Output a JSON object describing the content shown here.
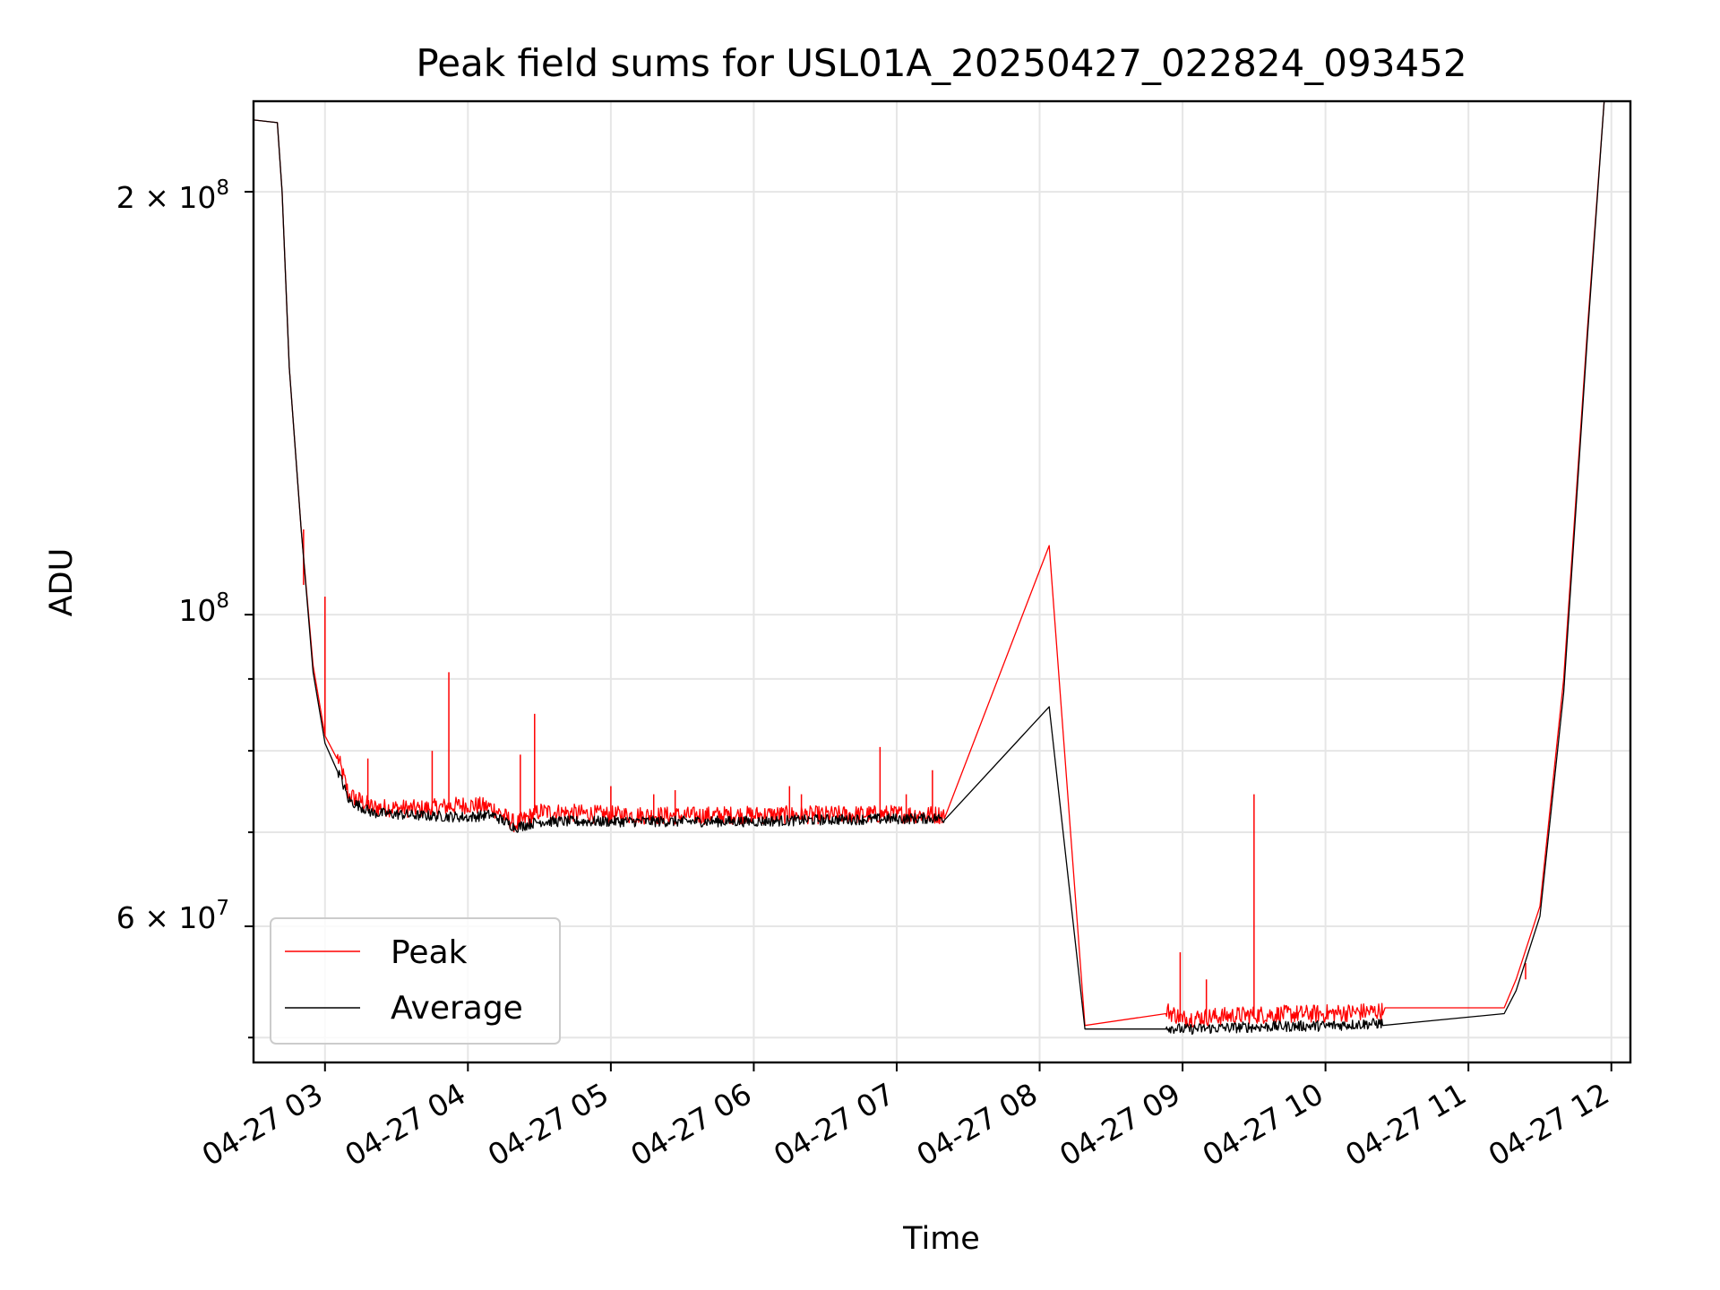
{
  "chart_data": {
    "type": "line",
    "title": "Peak field sums for USL01A_20250427_022824_093452",
    "xlabel": "Time",
    "ylabel": "ADU",
    "x_ticks": [
      "04-27 03",
      "04-27 04",
      "04-27 05",
      "04-27 06",
      "04-27 07",
      "04-27 08",
      "04-27 09",
      "04-27 10",
      "04-27 11",
      "04-27 12"
    ],
    "y_tick_labels": {
      "y2e8": "2 × 10",
      "y2e8_exp": "8",
      "y1e8": "10",
      "y1e8_exp": "8",
      "y6e7": "6 × 10",
      "y6e7_exp": "7"
    },
    "y_scale": "log",
    "xlim": [
      "2025-04-27 02:30",
      "2025-04-27 12:08"
    ],
    "ylim": [
      48000000,
      232000000
    ],
    "grid": true,
    "legend_location": "lower-left",
    "series": [
      {
        "name": "Peak",
        "color": "#ff0000",
        "points": [
          [
            "2025-04-27 02:30",
            225000000
          ],
          [
            "2025-04-27 02:40",
            224000000
          ],
          [
            "2025-04-27 02:42",
            200000000
          ],
          [
            "2025-04-27 02:45",
            150000000
          ],
          [
            "2025-04-27 02:50",
            115000000
          ],
          [
            "2025-04-27 02:55",
            92000000
          ],
          [
            "2025-04-27 03:00",
            82000000
          ],
          [
            "2025-04-27 03:05",
            79000000
          ],
          [
            "2025-04-27 03:10",
            74000000
          ],
          [
            "2025-04-27 03:20",
            72500000
          ],
          [
            "2025-04-27 03:40",
            72300000
          ],
          [
            "2025-04-27 04:00",
            72800000
          ],
          [
            "2025-04-27 04:10",
            72500000
          ],
          [
            "2025-04-27 04:20",
            70500000
          ],
          [
            "2025-04-27 04:30",
            72000000
          ],
          [
            "2025-04-27 05:00",
            71600000
          ],
          [
            "2025-04-27 05:30",
            71500000
          ],
          [
            "2025-04-27 06:00",
            71600000
          ],
          [
            "2025-04-27 06:30",
            71600000
          ],
          [
            "2025-04-27 07:00",
            71700000
          ],
          [
            "2025-04-27 07:20",
            71600000
          ],
          [
            "2025-04-27 08:04",
            112000000
          ],
          [
            "2025-04-27 08:19",
            51000000
          ],
          [
            "2025-04-27 08:53",
            52000000
          ],
          [
            "2025-04-27 09:00",
            51300000
          ],
          [
            "2025-04-27 09:30",
            51600000
          ],
          [
            "2025-04-27 10:00",
            51700000
          ],
          [
            "2025-04-27 10:24",
            51900000
          ],
          [
            "2025-04-27 10:25",
            52500000
          ],
          [
            "2025-04-27 11:15",
            52500000
          ],
          [
            "2025-04-27 11:20",
            55000000
          ],
          [
            "2025-04-27 11:30",
            62000000
          ],
          [
            "2025-04-27 11:40",
            90000000
          ],
          [
            "2025-04-27 11:50",
            160000000
          ],
          [
            "2025-04-27 11:57",
            232000000
          ]
        ],
        "spikes": [
          [
            "2025-04-27 02:51",
            105000000
          ],
          [
            "2025-04-27 03:00",
            103000000
          ],
          [
            "2025-04-27 03:18",
            79000000
          ],
          [
            "2025-04-27 03:45",
            80000000
          ],
          [
            "2025-04-27 03:52",
            91000000
          ],
          [
            "2025-04-27 04:22",
            79500000
          ],
          [
            "2025-04-27 04:28",
            85000000
          ],
          [
            "2025-04-27 05:00",
            75500000
          ],
          [
            "2025-04-27 05:18",
            74500000
          ],
          [
            "2025-04-27 05:27",
            75000000
          ],
          [
            "2025-04-27 06:15",
            75500000
          ],
          [
            "2025-04-27 06:20",
            74500000
          ],
          [
            "2025-04-27 06:53",
            80500000
          ],
          [
            "2025-04-27 07:04",
            74500000
          ],
          [
            "2025-04-27 07:15",
            77500000
          ],
          [
            "2025-04-27 08:59",
            57500000
          ],
          [
            "2025-04-27 09:10",
            55000000
          ],
          [
            "2025-04-27 09:30",
            74500000
          ],
          [
            "2025-04-27 11:24",
            56500000
          ]
        ]
      },
      {
        "name": "Average",
        "color": "#000000",
        "points": [
          [
            "2025-04-27 02:30",
            225000000
          ],
          [
            "2025-04-27 02:40",
            224000000
          ],
          [
            "2025-04-27 02:42",
            200000000
          ],
          [
            "2025-04-27 02:45",
            150000000
          ],
          [
            "2025-04-27 02:50",
            115000000
          ],
          [
            "2025-04-27 02:55",
            91000000
          ],
          [
            "2025-04-27 03:00",
            81000000
          ],
          [
            "2025-04-27 03:05",
            77500000
          ],
          [
            "2025-04-27 03:10",
            73500000
          ],
          [
            "2025-04-27 03:20",
            72000000
          ],
          [
            "2025-04-27 03:40",
            71700000
          ],
          [
            "2025-04-27 04:00",
            71500000
          ],
          [
            "2025-04-27 04:10",
            71800000
          ],
          [
            "2025-04-27 04:20",
            70300000
          ],
          [
            "2025-04-27 04:30",
            71000000
          ],
          [
            "2025-04-27 05:00",
            71000000
          ],
          [
            "2025-04-27 05:30",
            71000000
          ],
          [
            "2025-04-27 06:00",
            71000000
          ],
          [
            "2025-04-27 06:30",
            71200000
          ],
          [
            "2025-04-27 07:00",
            71300000
          ],
          [
            "2025-04-27 07:20",
            71400000
          ],
          [
            "2025-04-27 08:04",
            86000000
          ],
          [
            "2025-04-27 08:19",
            50700000
          ],
          [
            "2025-04-27 08:53",
            50700000
          ],
          [
            "2025-04-27 09:00",
            50500000
          ],
          [
            "2025-04-27 09:30",
            50700000
          ],
          [
            "2025-04-27 10:00",
            50800000
          ],
          [
            "2025-04-27 10:24",
            51000000
          ],
          [
            "2025-04-27 11:15",
            52000000
          ],
          [
            "2025-04-27 11:20",
            54000000
          ],
          [
            "2025-04-27 11:30",
            61000000
          ],
          [
            "2025-04-27 11:40",
            88000000
          ],
          [
            "2025-04-27 11:50",
            158000000
          ],
          [
            "2025-04-27 11:57",
            232000000
          ]
        ]
      }
    ]
  }
}
